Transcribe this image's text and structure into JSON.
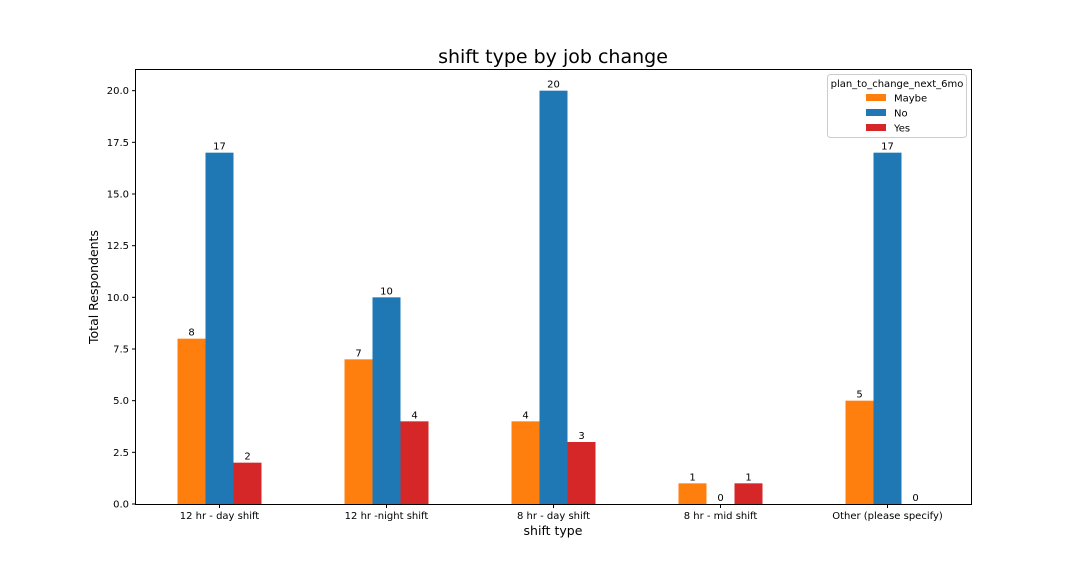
{
  "chart_data": {
    "type": "bar",
    "title": "shift type by job change",
    "xlabel": "shift type",
    "ylabel": "Total Respondents",
    "categories": [
      "12 hr - day shift",
      "12 hr -night shift",
      "8 hr - day shift",
      "8 hr - mid shift",
      "Other (please specify)"
    ],
    "series": [
      {
        "name": "Maybe",
        "color": "#ff7f0e",
        "values": [
          8,
          7,
          4,
          1,
          5
        ]
      },
      {
        "name": "No",
        "color": "#1f77b4",
        "values": [
          17,
          10,
          20,
          0,
          17
        ]
      },
      {
        "name": "Yes",
        "color": "#d62728",
        "values": [
          2,
          4,
          3,
          1,
          0
        ]
      }
    ],
    "ylim": [
      0,
      21
    ],
    "yticks": [
      "0.0",
      "2.5",
      "5.0",
      "7.5",
      "10.0",
      "12.5",
      "15.0",
      "17.5",
      "20.0"
    ],
    "legend": {
      "title": "plan_to_change_next_6mo",
      "position": "top-right"
    },
    "grid": false
  }
}
